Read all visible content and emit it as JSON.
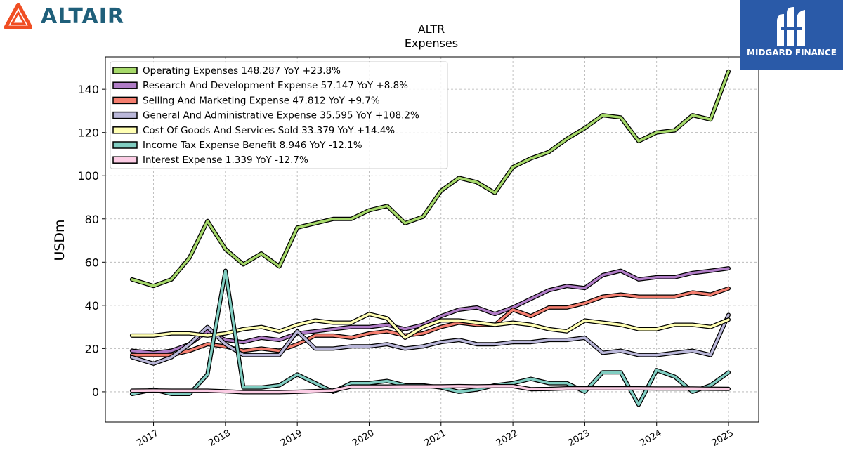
{
  "logo": {
    "text": "ALTAIR",
    "color": "#1f5f7a",
    "icon_color": "#f04e23"
  },
  "badge": {
    "text": "MIDGARD FINANCE",
    "background": "#2a5aa8"
  },
  "chart_data": {
    "type": "line",
    "title": "ALTR",
    "subtitle": "Expenses",
    "ylabel": "USDm",
    "xlabel": "",
    "ylim": [
      -14,
      155
    ],
    "xlim": [
      2016.33,
      2025.42
    ],
    "yticks": [
      0,
      20,
      40,
      60,
      80,
      100,
      120,
      140
    ],
    "xticks": [
      2017,
      2018,
      2019,
      2020,
      2021,
      2022,
      2023,
      2024,
      2025
    ],
    "grid": true,
    "legend_position": "top-left",
    "x": [
      2016.7,
      2017.0,
      2017.25,
      2017.5,
      2017.75,
      2018.0,
      2018.25,
      2018.5,
      2018.75,
      2019.0,
      2019.25,
      2019.5,
      2019.75,
      2020.0,
      2020.25,
      2020.5,
      2020.75,
      2021.0,
      2021.25,
      2021.5,
      2021.75,
      2022.0,
      2022.25,
      2022.5,
      2022.75,
      2023.0,
      2023.25,
      2023.5,
      2023.75,
      2024.0,
      2024.25,
      2024.5,
      2024.75,
      2025.0
    ],
    "series": [
      {
        "name": "Operating Expenses",
        "legend": "Operating Expenses  148.287 YoY +23.8%",
        "color": "#a6d96a",
        "values": [
          52,
          49,
          52,
          62,
          79,
          66,
          59,
          64,
          58,
          76,
          78,
          80,
          80,
          84,
          86,
          78,
          81,
          93,
          99,
          97,
          92,
          104,
          108,
          111,
          117,
          122,
          128,
          127,
          116,
          120,
          121,
          128,
          126,
          148.287
        ]
      },
      {
        "name": "Research And Development Expense",
        "legend": "Research And Development Expense  57.147 YoY +8.8%",
        "color": "#b07cc6",
        "values": [
          19,
          18,
          19,
          22,
          28,
          24,
          23,
          25,
          24,
          27,
          28,
          29,
          30,
          30,
          31,
          29,
          31,
          35,
          38,
          39,
          36,
          39,
          43,
          47,
          49,
          48,
          54,
          56,
          52,
          53,
          53,
          55,
          56,
          57.147
        ]
      },
      {
        "name": "Selling And Marketing Expense",
        "legend": "Selling And Marketing Expense  47.812 YoY +9.7%",
        "color": "#f47e6f",
        "values": [
          17,
          17,
          17,
          19,
          22,
          21,
          19,
          20,
          19,
          22,
          26,
          26,
          25,
          27,
          28,
          26,
          27,
          30,
          32,
          31,
          31,
          38,
          35,
          39,
          39,
          41,
          44,
          45,
          44,
          44,
          44,
          46,
          45,
          47.812
        ]
      },
      {
        "name": "General And Administrative Expense",
        "legend": "General And Administrative Expense  35.595 YoY +108.2%",
        "color": "#bab7d9",
        "values": [
          16,
          13,
          16,
          22,
          30,
          22,
          17,
          17,
          17,
          28,
          20,
          20,
          21,
          21,
          22,
          20,
          21,
          23,
          24,
          22,
          22,
          23,
          23,
          24,
          24,
          25,
          18,
          19,
          17,
          17,
          18,
          19,
          17,
          35.595
        ]
      },
      {
        "name": "Cost Of Goods And Services Sold",
        "legend": "Cost Of Goods And Services Sold  33.379 YoY +14.4%",
        "color": "#ffffb3",
        "values": [
          26,
          26,
          27,
          27,
          26,
          27,
          29,
          30,
          28,
          31,
          33,
          32,
          32,
          36,
          34,
          25,
          30,
          33,
          33,
          32,
          31,
          32,
          31,
          29,
          28,
          33,
          32,
          31,
          29,
          29,
          31,
          31,
          30,
          33.379
        ]
      },
      {
        "name": "Income Tax Expense Benefit",
        "legend": "Income Tax Expense Benefit  8.946 YoY -12.1%",
        "color": "#80cdc1",
        "values": [
          -1,
          1,
          -1,
          -1,
          8,
          56,
          2,
          2,
          3,
          8,
          4,
          0,
          4,
          4,
          5,
          3,
          3,
          2,
          0,
          1,
          3,
          4,
          6,
          4,
          4,
          0,
          9,
          9,
          -6,
          10,
          7,
          0,
          3,
          8.946
        ]
      },
      {
        "name": "Interest Expense",
        "legend": "Interest Expense  1.339 YoY -12.7%",
        "color": "#fccde5",
        "values": [
          0.5,
          0.6,
          0.5,
          0.5,
          0.5,
          0.2,
          -0.2,
          -0.2,
          -0.2,
          0,
          0.3,
          0.6,
          2.4,
          2.4,
          2.4,
          2.5,
          2.5,
          2.5,
          2.6,
          2.5,
          2.6,
          2.6,
          1.2,
          1.3,
          1.6,
          1.6,
          1.6,
          1.6,
          1.6,
          1.5,
          1.5,
          1.5,
          1.4,
          1.339
        ]
      }
    ]
  }
}
